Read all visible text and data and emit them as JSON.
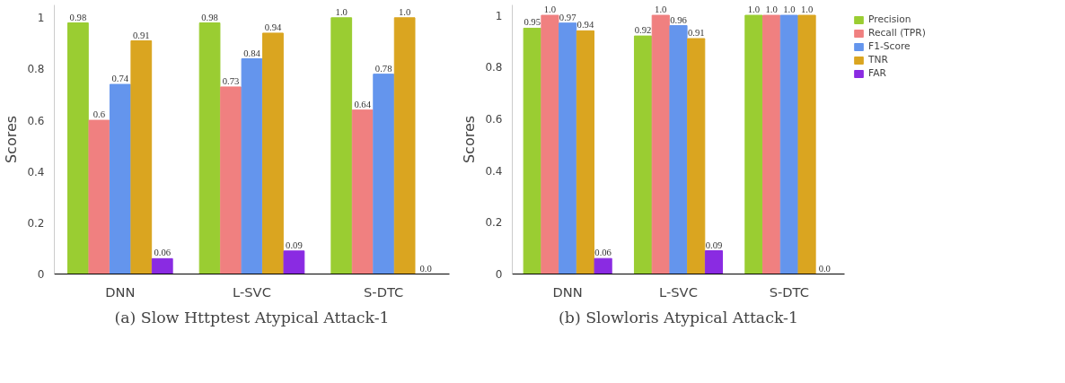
{
  "chart_data": [
    {
      "type": "bar",
      "title": "(a) Slow Httptest Atypical Attack-1",
      "ylabel": "Scores",
      "categories": [
        "DNN",
        "L-SVC",
        "S-DTC"
      ],
      "ylim": [
        0,
        1.05
      ],
      "yticks": [
        0,
        0.2,
        0.4,
        0.6,
        0.8,
        1
      ],
      "grid": false,
      "legend": false,
      "series": [
        {
          "color": "#9acd32",
          "values": [
            0.98,
            0.98,
            1.0
          ],
          "value_labels": [
            "0.98",
            "0.98",
            "1.0"
          ]
        },
        {
          "color": "#f08080",
          "values": [
            0.6,
            0.73,
            0.64
          ],
          "value_labels": [
            "0.6",
            "0.73",
            "0.64"
          ]
        },
        {
          "color": "#6495ed",
          "values": [
            0.74,
            0.84,
            0.78
          ],
          "value_labels": [
            "0.74",
            "0.84",
            "0.78"
          ]
        },
        {
          "color": "#daa520",
          "values": [
            0.91,
            0.94,
            1.0
          ],
          "value_labels": [
            "0.91",
            "0.94",
            "1.0"
          ]
        },
        {
          "color": "#8a2be2",
          "values": [
            0.06,
            0.09,
            0.0
          ],
          "value_labels": [
            "0.06",
            "0.09",
            "0.0"
          ]
        }
      ]
    },
    {
      "type": "bar",
      "title": "(b) Slowloris Atypical Attack-1",
      "ylabel": "Scores",
      "categories": [
        "DNN",
        "L-SVC",
        "S-DTC"
      ],
      "ylim": [
        0,
        1.04
      ],
      "yticks": [
        0,
        0.2,
        0.4,
        0.6,
        0.8,
        1
      ],
      "grid": false,
      "legend": "top right",
      "series": [
        {
          "name": "Precision",
          "color": "#9acd32",
          "values": [
            0.95,
            0.92,
            1.0
          ],
          "value_labels": [
            "0.95",
            "0.92",
            "1.0"
          ]
        },
        {
          "name": "Recall (TPR)",
          "color": "#f08080",
          "values": [
            1.0,
            1.0,
            1.0
          ],
          "value_labels": [
            "1.0",
            "1.0",
            "1.0"
          ]
        },
        {
          "name": "F1-Score",
          "color": "#6495ed",
          "values": [
            0.97,
            0.96,
            1.0
          ],
          "value_labels": [
            "0.97",
            "0.96",
            "1.0"
          ]
        },
        {
          "name": "TNR",
          "color": "#daa520",
          "values": [
            0.94,
            0.91,
            1.0
          ],
          "value_labels": [
            "0.94",
            "0.91",
            "1.0"
          ]
        },
        {
          "name": "FAR",
          "color": "#8a2be2",
          "values": [
            0.06,
            0.09,
            0.0
          ],
          "value_labels": [
            "0.06",
            "0.09",
            "0.0"
          ]
        }
      ]
    }
  ]
}
